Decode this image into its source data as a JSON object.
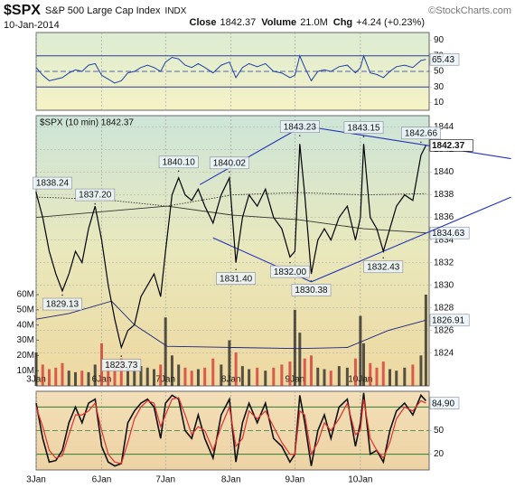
{
  "header": {
    "symbol": "$SPX",
    "name": "S&P 500 Large Cap Index",
    "exchange": "INDX",
    "copyright": "©StockCharts.com",
    "date": "10-Jan-2014",
    "close_label": "Close",
    "close": "1842.37",
    "volume_label": "Volume",
    "volume": "21.0M",
    "chg_label": "Chg",
    "chg": "+4.24 (+0.23%)"
  },
  "chart_data": [
    {
      "type": "line",
      "color": "#1f3fa8",
      "x": [
        0,
        4,
        8,
        12,
        16,
        20,
        24,
        28,
        32,
        36,
        40,
        44,
        48,
        52,
        56,
        60,
        64,
        68,
        72,
        76,
        79,
        83,
        87,
        91,
        95,
        99,
        103,
        108,
        113,
        118,
        122,
        126,
        130,
        135,
        140,
        145,
        150,
        155,
        158,
        161,
        164,
        168,
        172,
        176,
        180,
        185,
        190,
        195,
        198,
        200,
        204,
        208,
        212,
        216,
        220,
        225,
        230,
        235,
        238
      ],
      "values": [
        55,
        45,
        38,
        40,
        42,
        48,
        52,
        50,
        58,
        60,
        45,
        40,
        35,
        38,
        48,
        50,
        55,
        58,
        55,
        50,
        62,
        68,
        66,
        58,
        55,
        60,
        55,
        48,
        58,
        62,
        42,
        55,
        60,
        56,
        60,
        50,
        48,
        42,
        45,
        70,
        55,
        38,
        50,
        52,
        50,
        56,
        58,
        48,
        55,
        70,
        48,
        46,
        42,
        50,
        56,
        58,
        55,
        64,
        65.43
      ],
      "xlim": [
        0,
        240
      ],
      "ylim": [
        0,
        100
      ],
      "yticks": [
        10,
        30,
        50,
        70,
        90
      ],
      "hline_color": "#2a3a9a",
      "hlines": [
        {
          "value": 70
        },
        {
          "value": 50,
          "dash": true
        },
        {
          "value": 30
        }
      ]
    },
    {
      "type": "line",
      "title": "$SPX (10 min) 1842.37",
      "color": "#000000",
      "x": [
        0,
        4,
        8,
        12,
        16,
        20,
        24,
        28,
        32,
        36,
        40,
        44,
        48,
        52,
        56,
        60,
        64,
        68,
        72,
        76,
        79,
        83,
        87,
        91,
        95,
        99,
        103,
        108,
        113,
        118,
        122,
        126,
        130,
        135,
        140,
        145,
        150,
        155,
        158,
        161,
        164,
        168,
        172,
        176,
        180,
        185,
        190,
        195,
        198,
        200,
        204,
        208,
        212,
        216,
        220,
        225,
        230,
        235,
        238
      ],
      "values": [
        1838.2,
        1836,
        1833,
        1831,
        1829.5,
        1831,
        1833,
        1832,
        1835,
        1837,
        1834,
        1830,
        1827,
        1824.5,
        1826,
        1826.5,
        1829,
        1830,
        1831,
        1829,
        1833,
        1838,
        1839.5,
        1838,
        1837.5,
        1838.5,
        1837,
        1835.5,
        1838,
        1839.5,
        1832,
        1836,
        1838,
        1837,
        1838.5,
        1836,
        1835,
        1832.5,
        1833,
        1842.5,
        1838,
        1831,
        1834,
        1835,
        1834,
        1836,
        1837,
        1834,
        1836,
        1842.5,
        1836,
        1835,
        1833,
        1835,
        1837,
        1838,
        1837.5,
        1841.5,
        1842.37
      ],
      "volume": [
        22000000,
        14000000,
        11000000,
        12000000,
        15000000,
        10000000,
        9000000,
        10000000,
        9000000,
        14000000,
        28000000,
        16000000,
        12000000,
        18000000,
        12000000,
        11000000,
        13000000,
        12000000,
        11000000,
        14000000,
        45000000,
        20000000,
        14000000,
        12000000,
        10000000,
        11000000,
        12000000,
        18000000,
        14000000,
        30000000,
        22000000,
        13000000,
        11000000,
        12000000,
        10000000,
        12000000,
        14000000,
        16000000,
        50000000,
        35000000,
        18000000,
        20000000,
        12000000,
        11000000,
        10000000,
        13000000,
        12000000,
        18000000,
        46000000,
        28000000,
        15000000,
        12000000,
        16000000,
        11000000,
        10000000,
        12000000,
        14000000,
        20000000,
        60000000
      ],
      "up_color": "#222222",
      "down_color": "#d03030",
      "xlim": [
        0,
        240
      ],
      "xticks": [
        {
          "value": 0,
          "label": "3Jan"
        },
        {
          "value": 40,
          "label": "6Jan"
        },
        {
          "value": 79,
          "label": "7Jan"
        },
        {
          "value": 119,
          "label": "8Jan"
        },
        {
          "value": 158,
          "label": "9Jan"
        },
        {
          "value": 198,
          "label": "10Jan"
        }
      ],
      "ylim": [
        1821.1,
        1845
      ],
      "yticks": [
        1824,
        1826,
        1828,
        1830,
        1832,
        1834,
        1836,
        1838,
        1840,
        1842,
        1844
      ],
      "y2lim": [
        0,
        60000000
      ],
      "y2ticks": [
        {
          "value": 10000000,
          "label": "10M"
        },
        {
          "value": 20000000,
          "label": "20M"
        },
        {
          "value": 30000000,
          "label": "30M"
        },
        {
          "value": 40000000,
          "label": "40M"
        },
        {
          "value": 50000000,
          "label": "50M"
        },
        {
          "value": 60000000,
          "label": "60M"
        }
      ],
      "grid": true,
      "overlays": [
        {
          "color": "#333333",
          "dash": true,
          "x": [
            0,
            40,
            80,
            120,
            160,
            200,
            238
          ],
          "values": [
            1837.8,
            1837.6,
            1837,
            1838,
            1838.2,
            1838,
            1838.1
          ]
        },
        {
          "color": "#333333",
          "end_label": true,
          "x": [
            0,
            40,
            80,
            120,
            160,
            200,
            238
          ],
          "values": [
            1836,
            1836.5,
            1837,
            1836.2,
            1835.8,
            1835,
            1834.63
          ]
        },
        {
          "color": "#1a237e",
          "end_label": true,
          "x": [
            0,
            20,
            46,
            60,
            80,
            120,
            160,
            190,
            215,
            238
          ],
          "values": [
            1827,
            1827.5,
            1828.6,
            1826.5,
            1824.6,
            1824.5,
            1824.4,
            1824.5,
            1826,
            1826.91
          ]
        }
      ],
      "trendline_color": "#2233bb",
      "trendlines": [
        {
          "x": [
            100,
            163
          ],
          "values": [
            1838.9,
            1844.1
          ]
        },
        {
          "x": [
            163,
            290
          ],
          "values": [
            1844.1,
            1841.2
          ]
        },
        {
          "x": [
            108,
            168
          ],
          "values": [
            1834.2,
            1830.3
          ]
        },
        {
          "x": [
            168,
            290
          ],
          "values": [
            1830.3,
            1837.8
          ]
        }
      ],
      "annotations": [
        {
          "x": 0,
          "value": 1838.24,
          "label": "1838.24"
        },
        {
          "x": 36,
          "value": 1837.2,
          "label": "1837.20"
        },
        {
          "x": 16,
          "value": 1829.13,
          "label": "1829.13"
        },
        {
          "x": 52,
          "value": 1823.73,
          "label": "1823.73"
        },
        {
          "x": 87,
          "value": 1840.1,
          "label": "1840.10"
        },
        {
          "x": 118,
          "value": 1840.02,
          "label": "1840.02"
        },
        {
          "x": 122,
          "value": 1831.4,
          "label": "1831.40"
        },
        {
          "x": 161,
          "value": 1843.23,
          "label": "1843.23"
        },
        {
          "x": 155,
          "value": 1832,
          "label": "1832.00"
        },
        {
          "x": 168,
          "value": 1830.38,
          "label": "1830.38"
        },
        {
          "x": 200,
          "value": 1843.15,
          "label": "1843.15"
        },
        {
          "x": 212,
          "value": 1832.43,
          "label": "1832.43"
        },
        {
          "x": 235,
          "value": 1842.66,
          "label": "1842.66"
        }
      ]
    },
    {
      "type": "line",
      "x": [
        0,
        4,
        8,
        12,
        16,
        20,
        24,
        28,
        32,
        36,
        40,
        44,
        48,
        52,
        56,
        60,
        64,
        68,
        72,
        76,
        79,
        83,
        87,
        91,
        95,
        99,
        103,
        108,
        113,
        118,
        122,
        126,
        130,
        135,
        140,
        145,
        150,
        155,
        158,
        161,
        164,
        168,
        172,
        176,
        180,
        185,
        190,
        195,
        198,
        200,
        204,
        208,
        212,
        216,
        220,
        225,
        230,
        235,
        238
      ],
      "series": [
        {
          "color": "#111111",
          "values": [
            85,
            40,
            10,
            12,
            25,
            60,
            80,
            60,
            85,
            90,
            30,
            10,
            5,
            8,
            60,
            75,
            85,
            90,
            80,
            40,
            85,
            95,
            90,
            50,
            40,
            70,
            40,
            15,
            70,
            90,
            10,
            60,
            85,
            60,
            85,
            40,
            30,
            10,
            20,
            95,
            60,
            5,
            50,
            70,
            40,
            80,
            90,
            30,
            60,
            98,
            20,
            25,
            10,
            50,
            75,
            85,
            70,
            95,
            88
          ]
        },
        {
          "color": "#e03030",
          "values": [
            80,
            55,
            25,
            15,
            18,
            45,
            70,
            70,
            75,
            85,
            50,
            20,
            10,
            8,
            35,
            65,
            80,
            88,
            85,
            55,
            70,
            90,
            92,
            70,
            45,
            55,
            50,
            25,
            55,
            80,
            30,
            40,
            75,
            65,
            75,
            55,
            35,
            20,
            20,
            75,
            70,
            20,
            35,
            60,
            50,
            65,
            85,
            45,
            50,
            90,
            40,
            25,
            15,
            35,
            65,
            80,
            75,
            88,
            84.9
          ],
          "label": "84.90"
        }
      ],
      "xlim": [
        0,
        240
      ],
      "xticks": [
        {
          "value": 0,
          "label": "3Jan"
        },
        {
          "value": 40,
          "label": "6Jan"
        },
        {
          "value": 79,
          "label": "7Jan"
        },
        {
          "value": 119,
          "label": "8Jan"
        },
        {
          "value": 158,
          "label": "9Jan"
        },
        {
          "value": 198,
          "label": "10Jan"
        }
      ],
      "ylim": [
        0,
        100
      ],
      "yticks": [
        20,
        50,
        80
      ],
      "hline_color": "#2e7d32",
      "hlines": [
        {
          "value": 80
        },
        {
          "value": 50,
          "dash": true
        },
        {
          "value": 20
        }
      ]
    }
  ]
}
